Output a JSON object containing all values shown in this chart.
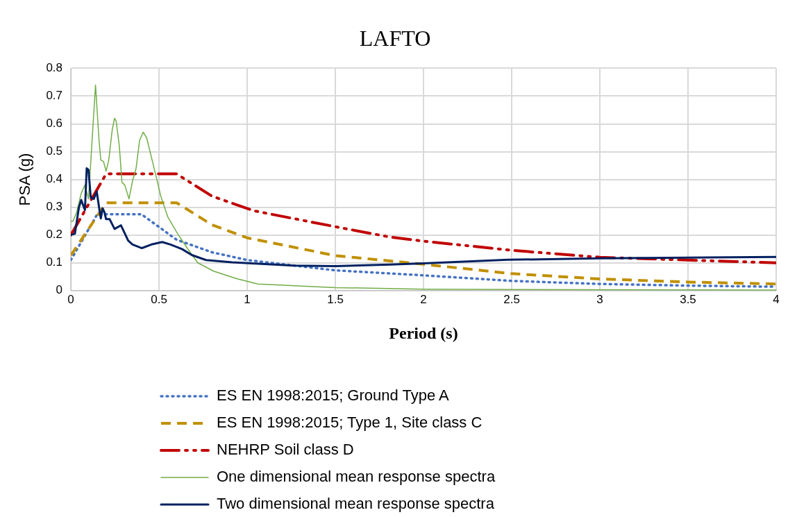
{
  "chart_data": {
    "type": "line",
    "title": "LAFTO",
    "xlabel": "Period (s)",
    "ylabel": "PSA (g)",
    "xlim": [
      0,
      4
    ],
    "xticks": [
      0,
      0.5,
      1,
      1.5,
      2,
      2.5,
      3,
      3.5,
      4
    ],
    "ylim": [
      0,
      0.8
    ],
    "yticks": [
      0,
      0.1,
      0.2,
      0.3,
      0.4,
      0.5,
      0.6,
      0.7,
      0.8
    ],
    "grid": true,
    "legend": "bottom",
    "marker": "none",
    "series": [
      {
        "name": "ES EN 1998:2015; Ground Type A",
        "color": "#4472c4",
        "line_style": "dotted",
        "x": [
          0,
          0.15,
          0.4,
          0.6,
          0.8,
          1,
          1.5,
          2,
          2.5,
          3,
          3.5,
          4
        ],
        "values": [
          0.11,
          0.275,
          0.275,
          0.183,
          0.138,
          0.11,
          0.073,
          0.055,
          0.035,
          0.024,
          0.018,
          0.014
        ]
      },
      {
        "name": "ES EN 1998:2015; Type 1, Site class C",
        "color": "#c09000",
        "line_style": "dashed",
        "x": [
          0,
          0.2,
          0.6,
          0.8,
          1,
          1.5,
          2,
          2.5,
          3,
          3.5,
          4
        ],
        "values": [
          0.127,
          0.316,
          0.316,
          0.237,
          0.19,
          0.126,
          0.095,
          0.061,
          0.042,
          0.031,
          0.024
        ]
      },
      {
        "name": "NEHRP Soil class D",
        "color": "#c00000",
        "line_style": "dashdot",
        "x": [
          0,
          0.2,
          0.6,
          0.8,
          1.04,
          1.5,
          1.8,
          2,
          2.5,
          3,
          3.5,
          4
        ],
        "values": [
          0.2,
          0.42,
          0.42,
          0.34,
          0.287,
          0.23,
          0.194,
          0.178,
          0.145,
          0.12,
          0.11,
          0.1
        ]
      },
      {
        "name": "One dimensional mean response spectra",
        "color": "#70ad47",
        "line_style": "solid",
        "x": [
          0,
          0.012,
          0.032,
          0.059,
          0.08,
          0.1,
          0.14,
          0.16,
          0.17,
          0.185,
          0.2,
          0.215,
          0.235,
          0.248,
          0.257,
          0.275,
          0.29,
          0.306,
          0.33,
          0.35,
          0.37,
          0.39,
          0.41,
          0.43,
          0.457,
          0.484,
          0.51,
          0.55,
          0.605,
          0.66,
          0.72,
          0.81,
          0.94,
          1.06,
          1.5,
          2,
          3,
          4
        ],
        "values": [
          0.25,
          0.25,
          0.28,
          0.35,
          0.38,
          0.33,
          0.74,
          0.54,
          0.47,
          0.465,
          0.43,
          0.47,
          0.58,
          0.62,
          0.61,
          0.52,
          0.39,
          0.38,
          0.33,
          0.395,
          0.44,
          0.54,
          0.57,
          0.55,
          0.48,
          0.41,
          0.34,
          0.265,
          0.205,
          0.153,
          0.1,
          0.07,
          0.043,
          0.024,
          0.011,
          0.005,
          0.003,
          0.002
        ]
      },
      {
        "name": "Two dimensional mean response spectra",
        "color": "#002060",
        "line_style": "solid",
        "x": [
          0,
          0.023,
          0.046,
          0.059,
          0.08,
          0.09,
          0.1,
          0.113,
          0.13,
          0.147,
          0.16,
          0.17,
          0.18,
          0.19,
          0.2,
          0.22,
          0.248,
          0.284,
          0.3,
          0.325,
          0.35,
          0.403,
          0.457,
          0.518,
          0.565,
          0.632,
          0.686,
          0.767,
          0.915,
          1.266,
          1.5,
          1.81,
          2,
          2.48,
          3,
          3.5,
          4
        ],
        "values": [
          0.2,
          0.205,
          0.3,
          0.326,
          0.29,
          0.44,
          0.435,
          0.335,
          0.33,
          0.356,
          0.3,
          0.26,
          0.296,
          0.283,
          0.257,
          0.257,
          0.222,
          0.235,
          0.214,
          0.18,
          0.166,
          0.153,
          0.166,
          0.175,
          0.166,
          0.149,
          0.128,
          0.11,
          0.102,
          0.09,
          0.088,
          0.094,
          0.098,
          0.111,
          0.116,
          0.119,
          0.121
        ]
      }
    ]
  }
}
